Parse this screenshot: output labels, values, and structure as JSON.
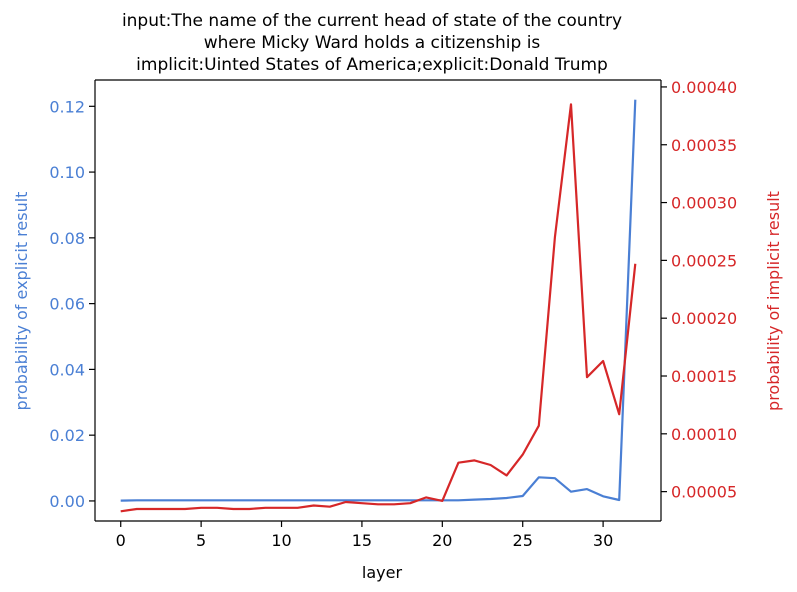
{
  "colors": {
    "explicit": "#4a7fd4",
    "implicit": "#d62728",
    "axis": "#000000"
  },
  "chart_data": {
    "type": "line",
    "title_lines": [
      "input:The name of the current head of state of the country",
      "where Micky Ward holds a citizenship is",
      "implicit:Uinted States of America;explicit:Donald Trump"
    ],
    "xlabel": "layer",
    "ylabel_left": "probability of explicit result",
    "ylabel_right": "probability of implicit result",
    "xlim": [
      -1.6,
      33.6
    ],
    "ylim_left": [
      -0.0061,
      0.128
    ],
    "ylim_right": [
      2.46e-05,
      0.000406
    ],
    "x_ticks": [
      0,
      5,
      10,
      15,
      20,
      25,
      30
    ],
    "x_tick_labels": [
      "0",
      "5",
      "10",
      "15",
      "20",
      "25",
      "30"
    ],
    "y_left_ticks": [
      0.0,
      0.02,
      0.04,
      0.06,
      0.08,
      0.1,
      0.12
    ],
    "y_left_tick_labels": [
      "0.00",
      "0.02",
      "0.04",
      "0.06",
      "0.08",
      "0.10",
      "0.12"
    ],
    "y_right_ticks": [
      5e-05,
      0.0001,
      0.00015,
      0.0002,
      0.00025,
      0.0003,
      0.00035,
      0.0004
    ],
    "y_right_tick_labels": [
      "0.00005",
      "0.00010",
      "0.00015",
      "0.00020",
      "0.00025",
      "0.00030",
      "0.00035",
      "0.00040"
    ],
    "x": [
      0,
      1,
      2,
      3,
      4,
      5,
      6,
      7,
      8,
      9,
      10,
      11,
      12,
      13,
      14,
      15,
      16,
      17,
      18,
      19,
      20,
      21,
      22,
      23,
      24,
      25,
      26,
      27,
      28,
      29,
      30,
      31,
      32
    ],
    "series": [
      {
        "name": "probability of explicit result",
        "axis": "left",
        "values": [
          0.0001,
          0.0002,
          0.0002,
          0.0002,
          0.0002,
          0.0002,
          0.0002,
          0.0002,
          0.0002,
          0.0002,
          0.0002,
          0.0002,
          0.0002,
          0.0002,
          0.0002,
          0.0002,
          0.0002,
          0.0002,
          0.0002,
          0.0002,
          0.0002,
          0.0002,
          0.0004,
          0.0006,
          0.0009,
          0.0015,
          0.0072,
          0.0069,
          0.0028,
          0.0036,
          0.0014,
          0.0003,
          0.122
        ]
      },
      {
        "name": "probability of implicit result",
        "axis": "right",
        "values": [
          3.3e-05,
          3.5e-05,
          3.5e-05,
          3.5e-05,
          3.5e-05,
          3.6e-05,
          3.6e-05,
          3.5e-05,
          3.5e-05,
          3.6e-05,
          3.6e-05,
          3.6e-05,
          3.8e-05,
          3.7e-05,
          4.1e-05,
          4e-05,
          3.9e-05,
          3.9e-05,
          4e-05,
          4.5e-05,
          4.2e-05,
          7.5e-05,
          7.7e-05,
          7.3e-05,
          6.4e-05,
          8.2e-05,
          0.000107,
          0.00027,
          0.000385,
          0.000149,
          0.000163,
          0.000117,
          0.000247
        ]
      }
    ]
  }
}
